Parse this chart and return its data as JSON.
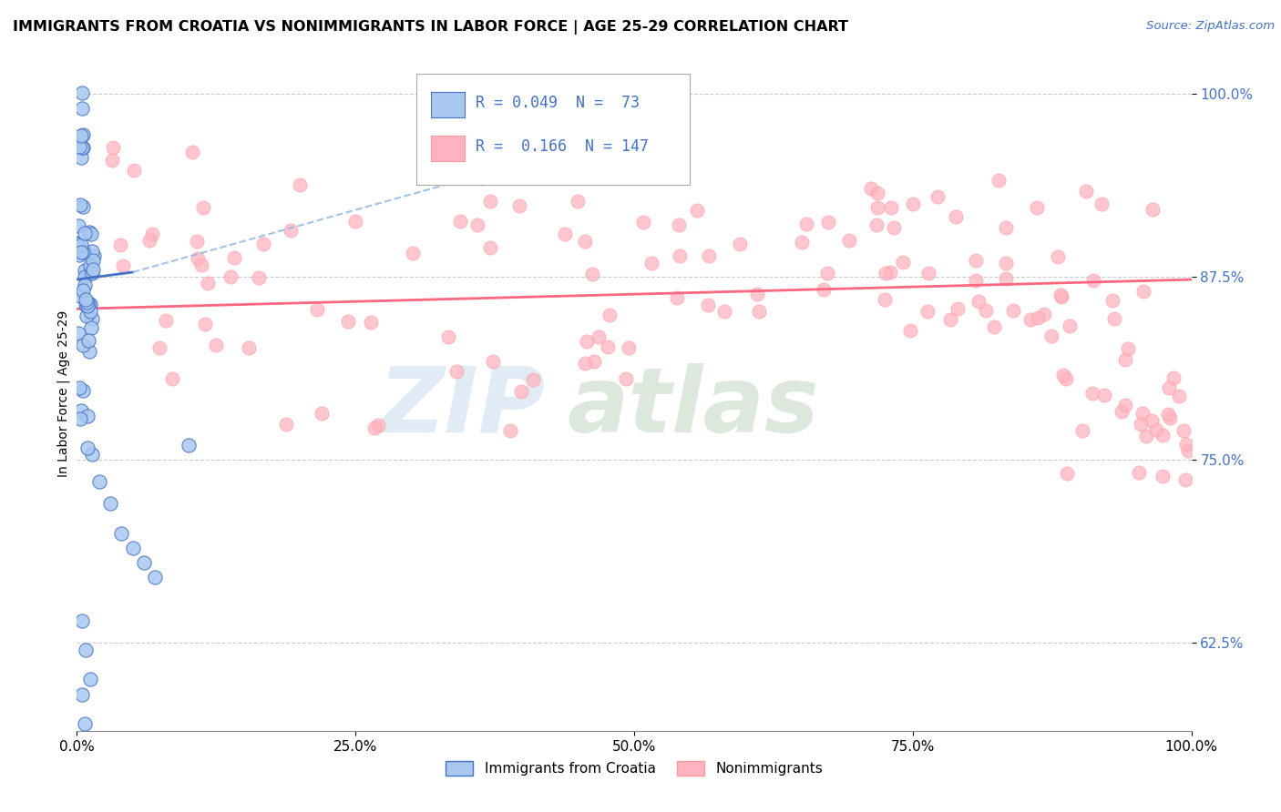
{
  "title": "IMMIGRANTS FROM CROATIA VS NONIMMIGRANTS IN LABOR FORCE | AGE 25-29 CORRELATION CHART",
  "source_text": "Source: ZipAtlas.com",
  "ylabel": "In Labor Force | Age 25-29",
  "y_ticks": [
    "62.5%",
    "75.0%",
    "87.5%",
    "100.0%"
  ],
  "y_tick_vals": [
    0.625,
    0.75,
    0.875,
    1.0
  ],
  "x_range": [
    0.0,
    1.0
  ],
  "y_range": [
    0.565,
    1.025
  ],
  "color_blue_fill": "#A8C8F0",
  "color_blue_edge": "#4472C4",
  "color_pink_fill": "#FFB3C1",
  "color_pink_edge": "#FF9999",
  "color_trend_blue": "#4472C4",
  "color_trend_gray": "#AAAAAA",
  "color_trend_pink": "#FF6680",
  "color_grid": "#CCCCCC",
  "color_ytick": "#4472C4",
  "legend_r1": "R = 0.049",
  "legend_n1": "N =  73",
  "legend_r2": "R =  0.166",
  "legend_n2": "N = 147",
  "blue_trend_start_x": 0.0,
  "blue_trend_start_y": 0.873,
  "blue_trend_solid_end_x": 0.05,
  "blue_trend_solid_end_y": 0.878,
  "blue_trend_dashed_end_x": 0.55,
  "blue_trend_dashed_end_y": 0.99,
  "pink_trend_start_x": 0.0,
  "pink_trend_start_y": 0.853,
  "pink_trend_end_x": 1.0,
  "pink_trend_end_y": 0.873,
  "watermark_zip": "ZIP",
  "watermark_atlas": "atlas"
}
